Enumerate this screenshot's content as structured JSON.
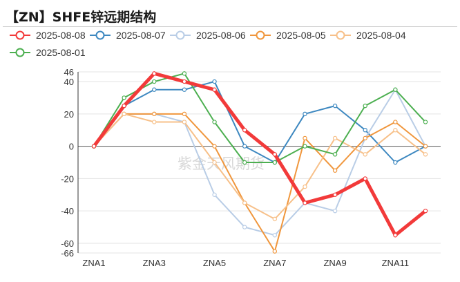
{
  "page": {
    "title": "【ZN】SHFE锌远期结构",
    "watermark": "紫金天风期货"
  },
  "chart_data": {
    "type": "line",
    "title": "【ZN】SHFE锌远期结构",
    "xlabel": "",
    "ylabel": "",
    "x": [
      "ZNA1",
      "ZNA2",
      "ZNA3",
      "ZNA4",
      "ZNA5",
      "ZNA6",
      "ZNA7",
      "ZNA8",
      "ZNA9",
      "ZNA10",
      "ZNA11",
      "ZNA12"
    ],
    "x_tick_labels": [
      "ZNA1",
      "ZNA3",
      "ZNA5",
      "ZNA7",
      "ZNA9",
      "ZNA11"
    ],
    "y_ticks": [
      46,
      40,
      20,
      0,
      -20,
      -40,
      -60,
      -66
    ],
    "ylim": [
      -66,
      46
    ],
    "grid": "horizontal",
    "legend_position": "top",
    "series": [
      {
        "name": "2025-08-08",
        "color": "#f23a3a",
        "width": 5,
        "values": [
          0,
          25,
          45,
          40,
          35,
          10,
          -5,
          -35,
          -30,
          -20,
          -55,
          -40
        ]
      },
      {
        "name": "2025-08-07",
        "color": "#3d88c0",
        "width": 2,
        "values": [
          0,
          25,
          35,
          35,
          40,
          0,
          -10,
          20,
          25,
          10,
          -10,
          0
        ]
      },
      {
        "name": "2025-08-06",
        "color": "#b9cde6",
        "width": 2,
        "values": [
          0,
          20,
          20,
          15,
          -30,
          -50,
          -55,
          -35,
          -40,
          5,
          35,
          0
        ]
      },
      {
        "name": "2025-08-05",
        "color": "#f0963c",
        "width": 2,
        "values": [
          0,
          20,
          20,
          20,
          0,
          -35,
          -65,
          5,
          -15,
          5,
          15,
          0
        ]
      },
      {
        "name": "2025-08-04",
        "color": "#f7c089",
        "width": 2,
        "values": [
          0,
          20,
          15,
          15,
          -10,
          -35,
          -45,
          -25,
          5,
          -5,
          10,
          -5
        ]
      },
      {
        "name": "2025-08-01",
        "color": "#4caf50",
        "width": 2,
        "values": [
          0,
          30,
          40,
          45,
          15,
          -10,
          -10,
          0,
          -5,
          25,
          35,
          15
        ]
      }
    ]
  }
}
